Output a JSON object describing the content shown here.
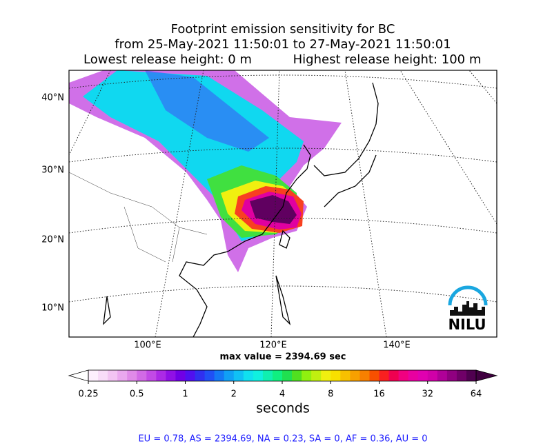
{
  "header": {
    "title_lines": [
      "Footprint emission sensitivity for BC",
      "from 25-May-2021 11:50:01 to 27-May-2021 11:50:01"
    ],
    "lowest_release": "Lowest release height: 0 m",
    "highest_release": "Highest release height: 100 m"
  },
  "map": {
    "lat_labels": [
      "40°N",
      "30°N",
      "20°N",
      "10°N"
    ],
    "lon_labels": [
      "100°E",
      "120°E",
      "140°E"
    ],
    "max_value": "max value = 2394.69 sec",
    "logo": "NILU"
  },
  "colorbar": {
    "label": "seconds",
    "log": true,
    "clim": [
      0.25,
      64
    ],
    "ticks": [
      0.25,
      0.5,
      1,
      2,
      4,
      8,
      16,
      32,
      64
    ],
    "colors": [
      "#fdf0fd",
      "#f8dcf8",
      "#f2c4f2",
      "#eaa8ee",
      "#e08ae8",
      "#d26ae6",
      "#c24ae6",
      "#ac2ae6",
      "#9010e6",
      "#7000e6",
      "#5010f0",
      "#3030f0",
      "#2050f5",
      "#1478f5",
      "#10a0f5",
      "#10c0f5",
      "#10e0f0",
      "#10f0e0",
      "#10f0b0",
      "#10f080",
      "#20e050",
      "#50e020",
      "#90f010",
      "#c0f010",
      "#f0f010",
      "#f8e000",
      "#f8c000",
      "#f8a000",
      "#f88000",
      "#f85000",
      "#f82020",
      "#f00050",
      "#f00080",
      "#e800a0",
      "#e000b0",
      "#d000a8",
      "#b00098",
      "#900080",
      "#700068",
      "#500050"
    ],
    "under_color": "#ffffff",
    "over_color": "#400040"
  },
  "footer": {
    "regions": "EU = 0.78,  AS = 2394.69,  NA = 0.23,  SA = 0,  AF = 0.36,  AU = 0"
  }
}
